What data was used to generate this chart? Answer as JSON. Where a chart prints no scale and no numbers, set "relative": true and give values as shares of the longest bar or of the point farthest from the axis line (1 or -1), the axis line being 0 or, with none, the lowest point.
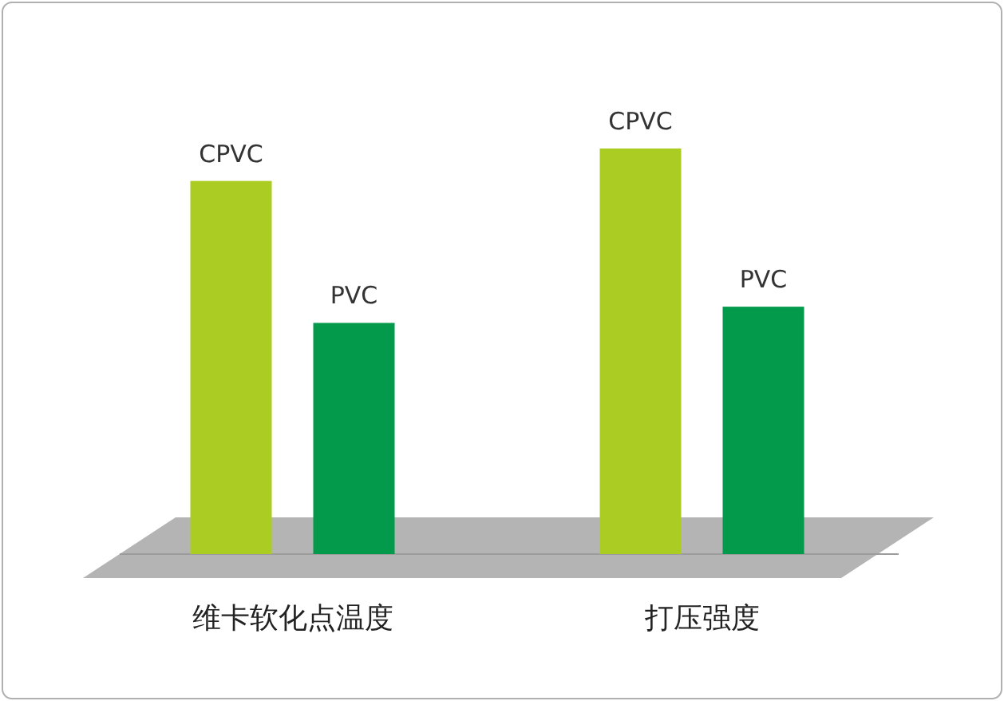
{
  "chart_data": {
    "type": "bar",
    "relative": true,
    "categories": [
      "维卡软化点温度",
      "打压强度"
    ],
    "series": [
      {
        "name": "CPVC",
        "color": "#abcd23",
        "values": [
          0.92,
          1
        ]
      },
      {
        "name": "PVC",
        "color": "#039a4b",
        "values": [
          0.57,
          0.61
        ]
      }
    ]
  }
}
